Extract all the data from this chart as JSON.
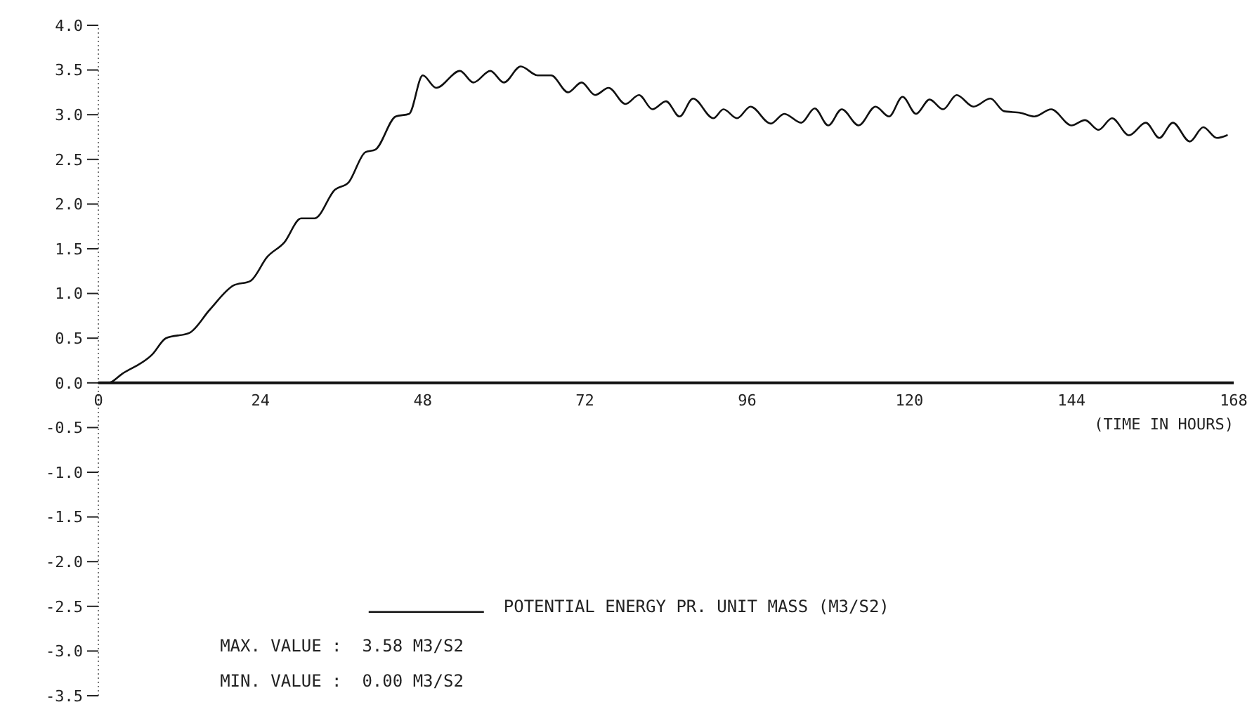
{
  "chart_data": {
    "type": "line",
    "xlabel": "(TIME IN HOURS)",
    "x": [
      0,
      1.5,
      3.5,
      8,
      10,
      13.5,
      16.5,
      20,
      22.5,
      25,
      27.5,
      30,
      32,
      35,
      37,
      39.5,
      41,
      44,
      46,
      48,
      50,
      53.5,
      55.5,
      58,
      60,
      62.5,
      65,
      67,
      69.5,
      71.5,
      73.5,
      75.5,
      78,
      80,
      82,
      84,
      86,
      88,
      91,
      92.5,
      94.5,
      96.5,
      99.5,
      101.5,
      104,
      106,
      108,
      110,
      112.5,
      115,
      117,
      119,
      121,
      123,
      125,
      127,
      129.5,
      132,
      134,
      136.5,
      138.5,
      141,
      144,
      146,
      148,
      150,
      152.5,
      155,
      157,
      159,
      161.5,
      163.5,
      165.5,
      167
    ],
    "series": [
      {
        "name": "POTENTIAL ENERGY PR. UNIT MASS (M3/S2)",
        "color": "#111111",
        "values": [
          0,
          0,
          0.1,
          0.32,
          0.5,
          0.56,
          0.82,
          1.09,
          1.14,
          1.41,
          1.57,
          1.84,
          1.84,
          2.16,
          2.24,
          2.58,
          2.61,
          2.98,
          3.01,
          3.44,
          3.3,
          3.49,
          3.36,
          3.49,
          3.36,
          3.54,
          3.44,
          3.44,
          3.25,
          3.36,
          3.22,
          3.3,
          3.12,
          3.22,
          3.06,
          3.15,
          2.98,
          3.18,
          2.96,
          3.06,
          2.96,
          3.09,
          2.9,
          3.01,
          2.91,
          3.07,
          2.88,
          3.06,
          2.88,
          3.09,
          2.98,
          3.2,
          3.01,
          3.17,
          3.06,
          3.22,
          3.09,
          3.18,
          3.04,
          3.02,
          2.98,
          3.06,
          2.88,
          2.94,
          2.83,
          2.96,
          2.77,
          2.91,
          2.74,
          2.91,
          2.7,
          2.86,
          2.74,
          2.77
        ]
      }
    ],
    "xlim": [
      0,
      168
    ],
    "xticks": [
      0,
      24,
      48,
      72,
      96,
      120,
      144,
      168
    ],
    "ylim": [
      -3.5,
      4.0
    ],
    "yticks": [
      {
        "value": 4,
        "label": "4.0"
      },
      {
        "value": 3.5,
        "label": "3.5"
      },
      {
        "value": 3,
        "label": "3.0"
      },
      {
        "value": 2.5,
        "label": "2.5"
      },
      {
        "value": 2,
        "label": "2.0"
      },
      {
        "value": 1.5,
        "label": "1.5"
      },
      {
        "value": 1,
        "label": "1.0"
      },
      {
        "value": 0.5,
        "label": "0.5"
      },
      {
        "value": 0,
        "label": "0.0"
      },
      {
        "value": -0.5,
        "label": "-0.5"
      },
      {
        "value": -1,
        "label": "-1.0"
      },
      {
        "value": -1.5,
        "label": "-1.5"
      },
      {
        "value": -2,
        "label": "-2.0"
      },
      {
        "value": -2.5,
        "label": "-2.5"
      },
      {
        "value": -3,
        "label": "-3.0"
      },
      {
        "value": -3.5,
        "label": "-3.5"
      }
    ],
    "legend": "bottom",
    "grid": false,
    "marker": "none",
    "line_style": "solid",
    "annotations": [
      "MAX. VALUE :  3.58 M3/S2",
      "MIN. VALUE :  0.00 M3/S2"
    ]
  }
}
